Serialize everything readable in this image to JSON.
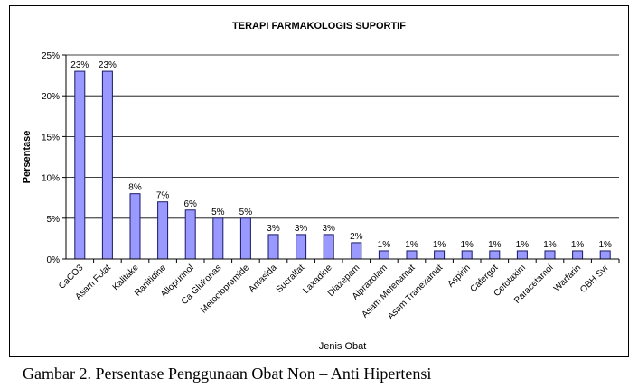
{
  "chart_data": {
    "type": "bar",
    "title": "TERAPI FARMAKOLOGIS SUPORTIF",
    "xlabel": "Jenis Obat",
    "ylabel": "Persentase",
    "ylim": [
      0,
      25
    ],
    "yticks": [
      0,
      5,
      10,
      15,
      20,
      25
    ],
    "ytick_suffix": "%",
    "grid": true,
    "legend": "none",
    "colors": {
      "bar_fill": "#9999ff",
      "bar_stroke": "#1a1a66"
    },
    "categories": [
      "CaCO3",
      "Asam Folat",
      "Kalitake",
      "Ranitidine",
      "Allopurinol",
      "Ca Glukonas",
      "Metoclopramide",
      "Antasida",
      "Sucralfat",
      "Laxadine",
      "Diazepam",
      "Alprazolam",
      "Asam Mefenamat",
      "Asam Tranexamat",
      "Aspirin",
      "Cafergot",
      "Cefotaxim",
      "Paracetamol",
      "Warfarin",
      "OBH Syr"
    ],
    "values": [
      23,
      23,
      8,
      7,
      6,
      5,
      5,
      3,
      3,
      3,
      2,
      1,
      1,
      1,
      1,
      1,
      1,
      1,
      1,
      1
    ],
    "data_labels": [
      "23%",
      "23%",
      "8%",
      "7%",
      "6%",
      "5%",
      "5%",
      "3%",
      "3%",
      "3%",
      "2%",
      "1%",
      "1%",
      "1%",
      "1%",
      "1%",
      "1%",
      "1%",
      "1%",
      "1%"
    ]
  },
  "caption": "Gambar 2. Persentase Penggunaan Obat Non – Anti Hipertensi"
}
